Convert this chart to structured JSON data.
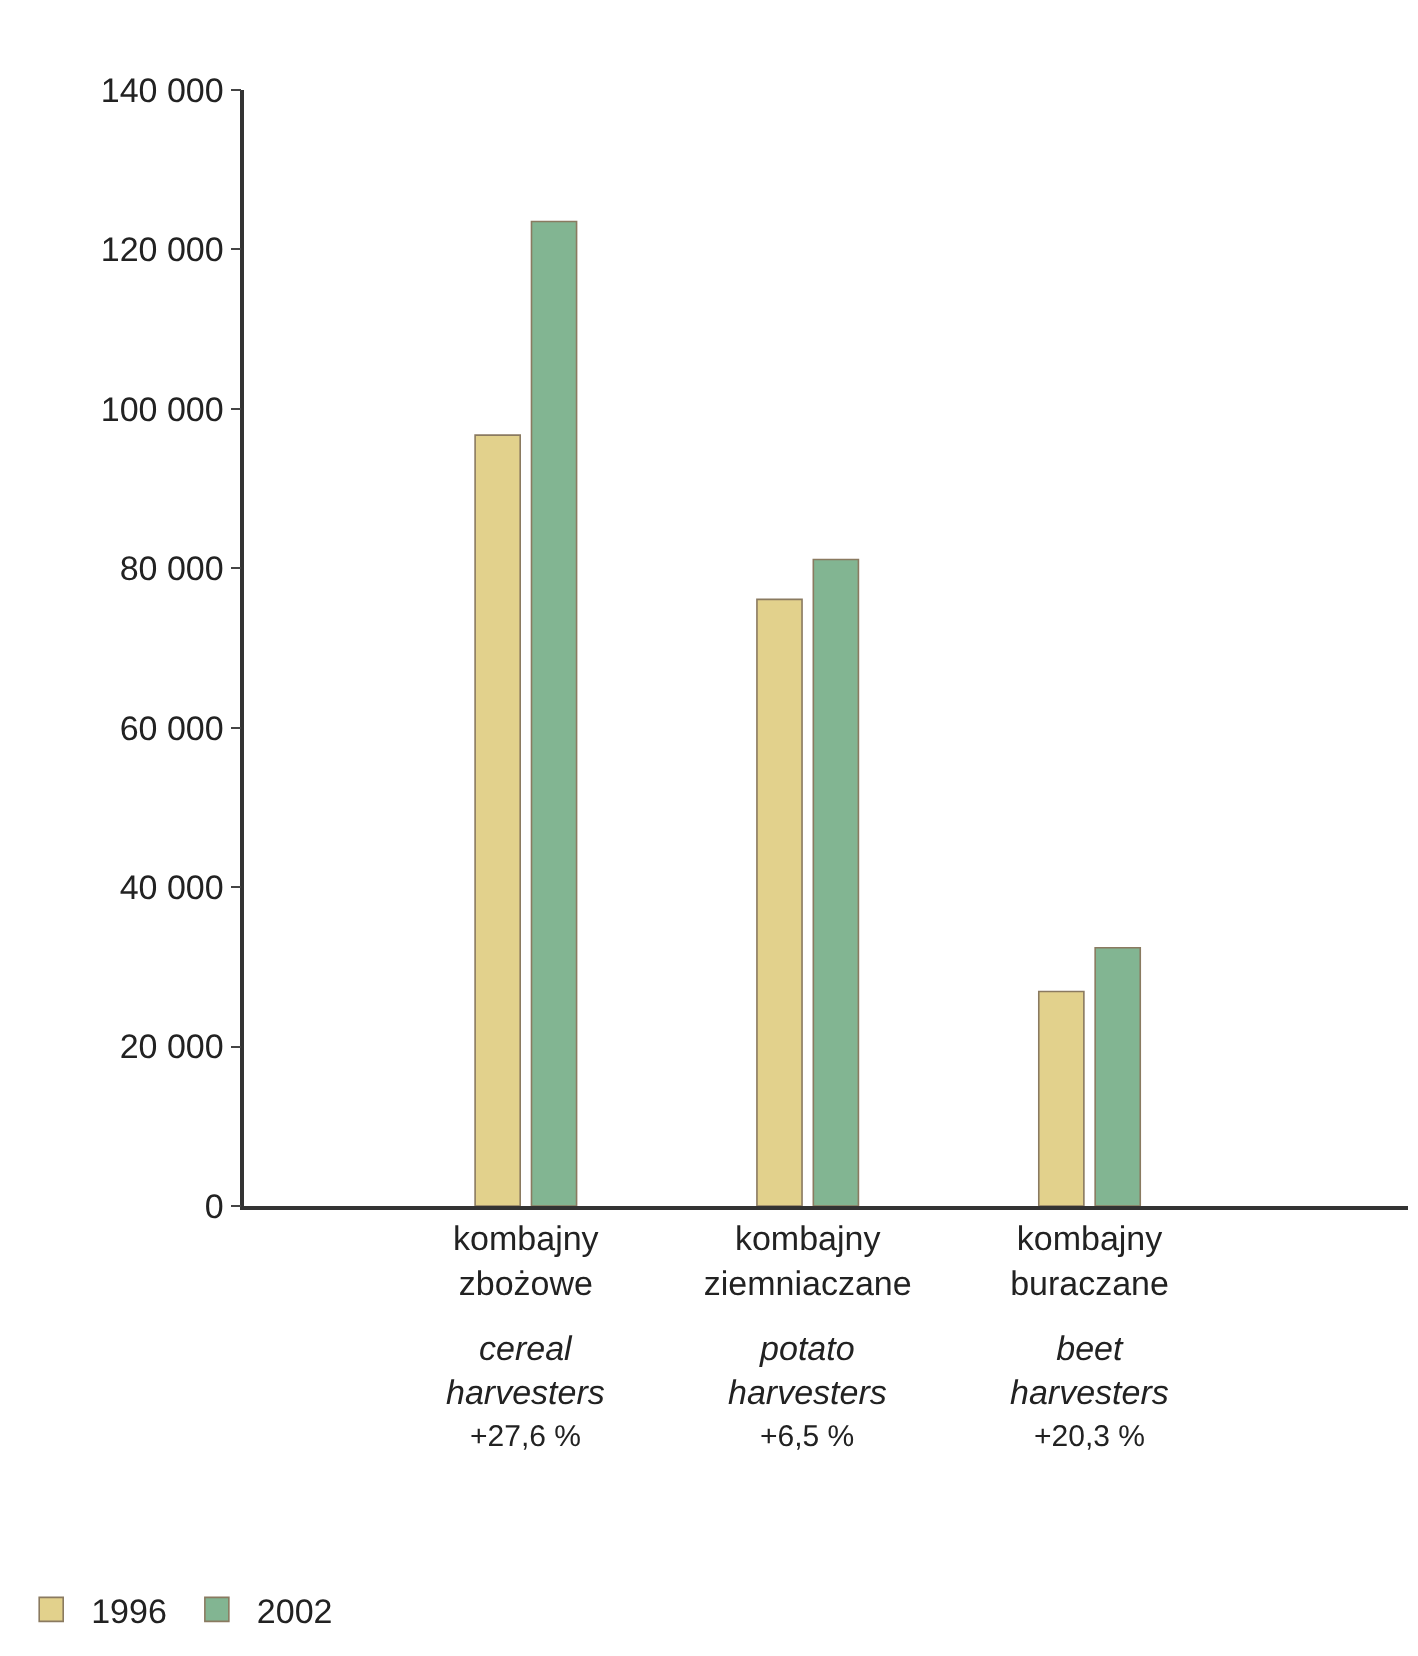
{
  "chart_data": {
    "type": "bar",
    "categories": [
      "kombajny\nzbożowe",
      "kombajny\nziemniaczane",
      "kombajny\nburaczane"
    ],
    "series": [
      {
        "name": "1996",
        "color": "#e2d18c",
        "values": [
          96700,
          76100,
          26900
        ]
      },
      {
        "name": "2002",
        "color": "#82b592",
        "values": [
          123500,
          81100,
          32400
        ]
      }
    ],
    "annotations": [
      "cereal\nharvesters",
      "+27,6 %",
      "potato\nharvesters",
      "+6,5 %",
      "beet\nharvesters",
      "+20,3 %"
    ],
    "ylim": [
      0,
      140000
    ],
    "yticks": [
      {
        "value": 0,
        "label": "0"
      },
      {
        "value": 20000,
        "label": "20 000"
      },
      {
        "value": 40000,
        "label": "40 000"
      },
      {
        "value": 60000,
        "label": "60 000"
      },
      {
        "value": 80000,
        "label": "80 000"
      },
      {
        "value": 100000,
        "label": "100 000"
      },
      {
        "value": 120000,
        "label": "120 000"
      },
      {
        "value": 140000,
        "label": "140 000"
      }
    ],
    "legend": "bottom left"
  }
}
